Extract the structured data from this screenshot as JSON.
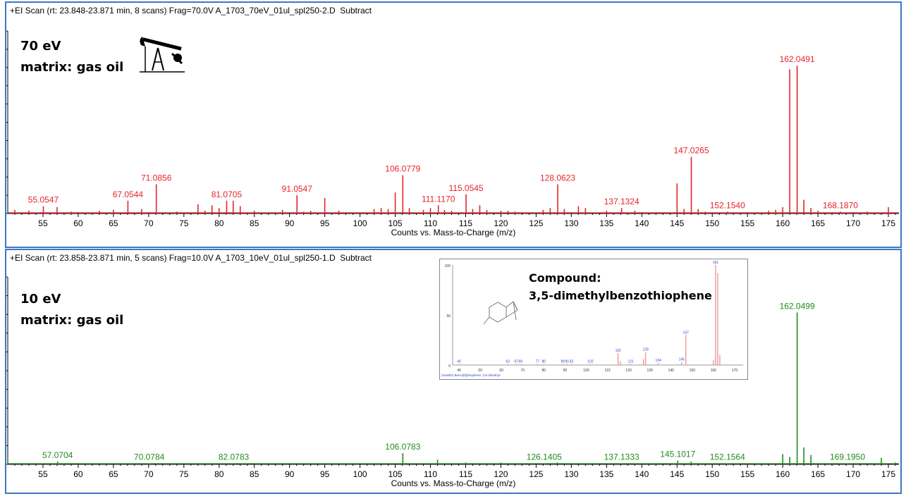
{
  "panels": [
    {
      "header": "+EI Scan (rt: 23.848-23.871 min, 8 scans) Frag=70.0V A_1703_70eV_01ul_spl250-2.D  Subtract",
      "energy_label": "70 eV",
      "matrix_label": "matrix: gas oil",
      "icon": "oil-pump-jack-icon"
    },
    {
      "header": "+EI Scan (rt: 23.858-23.871 min, 5 scans) Frag=10.0V A_1703_10eV_01ul_spl250-1.D  Subtract",
      "energy_label": "10 eV",
      "matrix_label": "matrix: gas oil",
      "inset": {
        "compound_label": "Compound:",
        "compound_name": "3,5-dimethylbenzothiophene",
        "library_caption": "(mainlib) Benzo[b]thiophene, 3,5-dimethyl-",
        "y_ticks": [
          "100",
          "50",
          "0"
        ],
        "x_ticks": [
          "40",
          "50",
          "60",
          "70",
          "80",
          "90",
          "100",
          "110",
          "120",
          "130",
          "140",
          "150",
          "160",
          "170"
        ],
        "peaks": [
          {
            "x": 40,
            "y": 1,
            "label": "40"
          },
          {
            "x": 63,
            "y": 1,
            "label": "63"
          },
          {
            "x": 67,
            "y": 1,
            "label": "67"
          },
          {
            "x": 69,
            "y": 1,
            "label": "69"
          },
          {
            "x": 77,
            "y": 1,
            "label": "77"
          },
          {
            "x": 80,
            "y": 1,
            "label": "80"
          },
          {
            "x": 89,
            "y": 1,
            "label": "89"
          },
          {
            "x": 91,
            "y": 1,
            "label": "91"
          },
          {
            "x": 93,
            "y": 1,
            "label": "93"
          },
          {
            "x": 102,
            "y": 1,
            "label": "102"
          },
          {
            "x": 115,
            "y": 12,
            "label": "115"
          },
          {
            "x": 121,
            "y": 1,
            "label": "121"
          },
          {
            "x": 128,
            "y": 13,
            "label": "128"
          },
          {
            "x": 134,
            "y": 2,
            "label": "134"
          },
          {
            "x": 145,
            "y": 3,
            "label": "145"
          },
          {
            "x": 147,
            "y": 30,
            "label": "147"
          },
          {
            "x": 161,
            "y": 100,
            "label": "161"
          },
          {
            "x": 162,
            "y": 92,
            "label": ""
          },
          {
            "x": 163,
            "y": 10,
            "label": ""
          },
          {
            "x": 160,
            "y": 5,
            "label": ""
          },
          {
            "x": 116,
            "y": 4,
            "label": ""
          },
          {
            "x": 127,
            "y": 6,
            "label": ""
          }
        ]
      }
    }
  ],
  "chart_data": [
    {
      "type": "bar",
      "title": "+EI Scan (rt: 23.848-23.871 min, 8 scans) Frag=70.0V A_1703_70eV_01ul_spl250-2.D  Subtract",
      "xlabel": "Counts vs. Mass-to-Charge (m/z)",
      "xlim": [
        50,
        176.5
      ],
      "ylim": [
        0,
        100
      ],
      "x_ticks": [
        55,
        60,
        65,
        70,
        75,
        80,
        85,
        90,
        95,
        100,
        105,
        110,
        115,
        120,
        125,
        130,
        135,
        140,
        145,
        150,
        155,
        160,
        165,
        170,
        175
      ],
      "color": "#e8232a",
      "peaks": [
        {
          "x": 51,
          "y": 2
        },
        {
          "x": 53,
          "y": 1.5
        },
        {
          "x": 55.0547,
          "y": 4,
          "label": "55.0547"
        },
        {
          "x": 57,
          "y": 3.5
        },
        {
          "x": 59,
          "y": 1
        },
        {
          "x": 63,
          "y": 1.5
        },
        {
          "x": 65,
          "y": 2
        },
        {
          "x": 67.0544,
          "y": 7,
          "label": "67.0544"
        },
        {
          "x": 69,
          "y": 2.5
        },
        {
          "x": 71.0856,
          "y": 16,
          "label": "71.0856"
        },
        {
          "x": 74,
          "y": 1
        },
        {
          "x": 77,
          "y": 5
        },
        {
          "x": 78,
          "y": 1.5
        },
        {
          "x": 79,
          "y": 4.5
        },
        {
          "x": 80,
          "y": 3
        },
        {
          "x": 81.0705,
          "y": 7,
          "label": "81.0705"
        },
        {
          "x": 82,
          "y": 7
        },
        {
          "x": 83,
          "y": 4
        },
        {
          "x": 85,
          "y": 1.5
        },
        {
          "x": 89,
          "y": 2
        },
        {
          "x": 91.0547,
          "y": 10,
          "label": "91.0547"
        },
        {
          "x": 92,
          "y": 1
        },
        {
          "x": 93,
          "y": 1.5
        },
        {
          "x": 95,
          "y": 8.5
        },
        {
          "x": 97,
          "y": 1.5
        },
        {
          "x": 102,
          "y": 2.5
        },
        {
          "x": 103,
          "y": 3
        },
        {
          "x": 104,
          "y": 2.5
        },
        {
          "x": 105,
          "y": 11.5
        },
        {
          "x": 106.0779,
          "y": 21,
          "label": "106.0779"
        },
        {
          "x": 107,
          "y": 3
        },
        {
          "x": 109,
          "y": 2
        },
        {
          "x": 110,
          "y": 3
        },
        {
          "x": 111.117,
          "y": 4.5,
          "label": "111.1170"
        },
        {
          "x": 112,
          "y": 2
        },
        {
          "x": 113,
          "y": 1.5
        },
        {
          "x": 115.0545,
          "y": 10.5,
          "label": "115.0545"
        },
        {
          "x": 116,
          "y": 2.5
        },
        {
          "x": 117,
          "y": 4.5
        },
        {
          "x": 118,
          "y": 2
        },
        {
          "x": 120,
          "y": 1.5
        },
        {
          "x": 121,
          "y": 1.5
        },
        {
          "x": 122,
          "y": 1
        },
        {
          "x": 126,
          "y": 2
        },
        {
          "x": 127,
          "y": 3
        },
        {
          "x": 128.0623,
          "y": 16,
          "label": "128.0623"
        },
        {
          "x": 129,
          "y": 2.5
        },
        {
          "x": 131,
          "y": 4
        },
        {
          "x": 132,
          "y": 3
        },
        {
          "x": 135,
          "y": 1.5
        },
        {
          "x": 137.1324,
          "y": 3,
          "label": "137.1324"
        },
        {
          "x": 139,
          "y": 1.5
        },
        {
          "x": 145,
          "y": 16.5
        },
        {
          "x": 146,
          "y": 2.5
        },
        {
          "x": 147.0265,
          "y": 31,
          "label": "147.0265"
        },
        {
          "x": 148,
          "y": 2.5
        },
        {
          "x": 149,
          "y": 1
        },
        {
          "x": 152.154,
          "y": 1,
          "label": "152.1540"
        },
        {
          "x": 158,
          "y": 1.5
        },
        {
          "x": 159,
          "y": 2
        },
        {
          "x": 160,
          "y": 3.5
        },
        {
          "x": 161,
          "y": 79
        },
        {
          "x": 162.0491,
          "y": 81,
          "label": "162.0491"
        },
        {
          "x": 163,
          "y": 7.5
        },
        {
          "x": 164,
          "y": 3
        },
        {
          "x": 165,
          "y": 1.5
        },
        {
          "x": 168.187,
          "y": 1,
          "label": "168.1870"
        },
        {
          "x": 172,
          "y": 1
        },
        {
          "x": 175,
          "y": 3.5
        }
      ]
    },
    {
      "type": "bar",
      "title": "+EI Scan (rt: 23.858-23.871 min, 5 scans) Frag=10.0V A_1703_10eV_01ul_spl250-1.D  Subtract",
      "xlabel": "Counts vs. Mass-to-Charge (m/z)",
      "xlim": [
        50,
        176.5
      ],
      "ylim": [
        0,
        100
      ],
      "x_ticks": [
        55,
        60,
        65,
        70,
        75,
        80,
        85,
        90,
        95,
        100,
        105,
        110,
        115,
        120,
        125,
        130,
        135,
        140,
        145,
        150,
        155,
        160,
        165,
        170,
        175
      ],
      "color": "#1e8c1e",
      "peaks": [
        {
          "x": 57.0704,
          "y": 1.5,
          "label": "57.0704"
        },
        {
          "x": 70.0784,
          "y": 0.5,
          "label": "70.0784"
        },
        {
          "x": 82.0783,
          "y": 0.5,
          "label": "82.0783"
        },
        {
          "x": 106.0783,
          "y": 6,
          "label": "106.0783"
        },
        {
          "x": 111,
          "y": 2.5
        },
        {
          "x": 115,
          "y": 1
        },
        {
          "x": 120,
          "y": 1
        },
        {
          "x": 126.1405,
          "y": 0.5,
          "label": "126.1405"
        },
        {
          "x": 128,
          "y": 1
        },
        {
          "x": 137.1333,
          "y": 0.5,
          "label": "137.1333"
        },
        {
          "x": 145.1017,
          "y": 2,
          "label": "145.1017"
        },
        {
          "x": 147,
          "y": 1.5
        },
        {
          "x": 152.1564,
          "y": 0.5,
          "label": "152.1564"
        },
        {
          "x": 160,
          "y": 5.5
        },
        {
          "x": 161,
          "y": 4
        },
        {
          "x": 162.0499,
          "y": 81,
          "label": "162.0499"
        },
        {
          "x": 163,
          "y": 9
        },
        {
          "x": 164,
          "y": 5
        },
        {
          "x": 169.195,
          "y": 0.5,
          "label": "169.1950"
        },
        {
          "x": 174,
          "y": 3.5
        },
        {
          "x": 176,
          "y": 1
        }
      ]
    }
  ]
}
